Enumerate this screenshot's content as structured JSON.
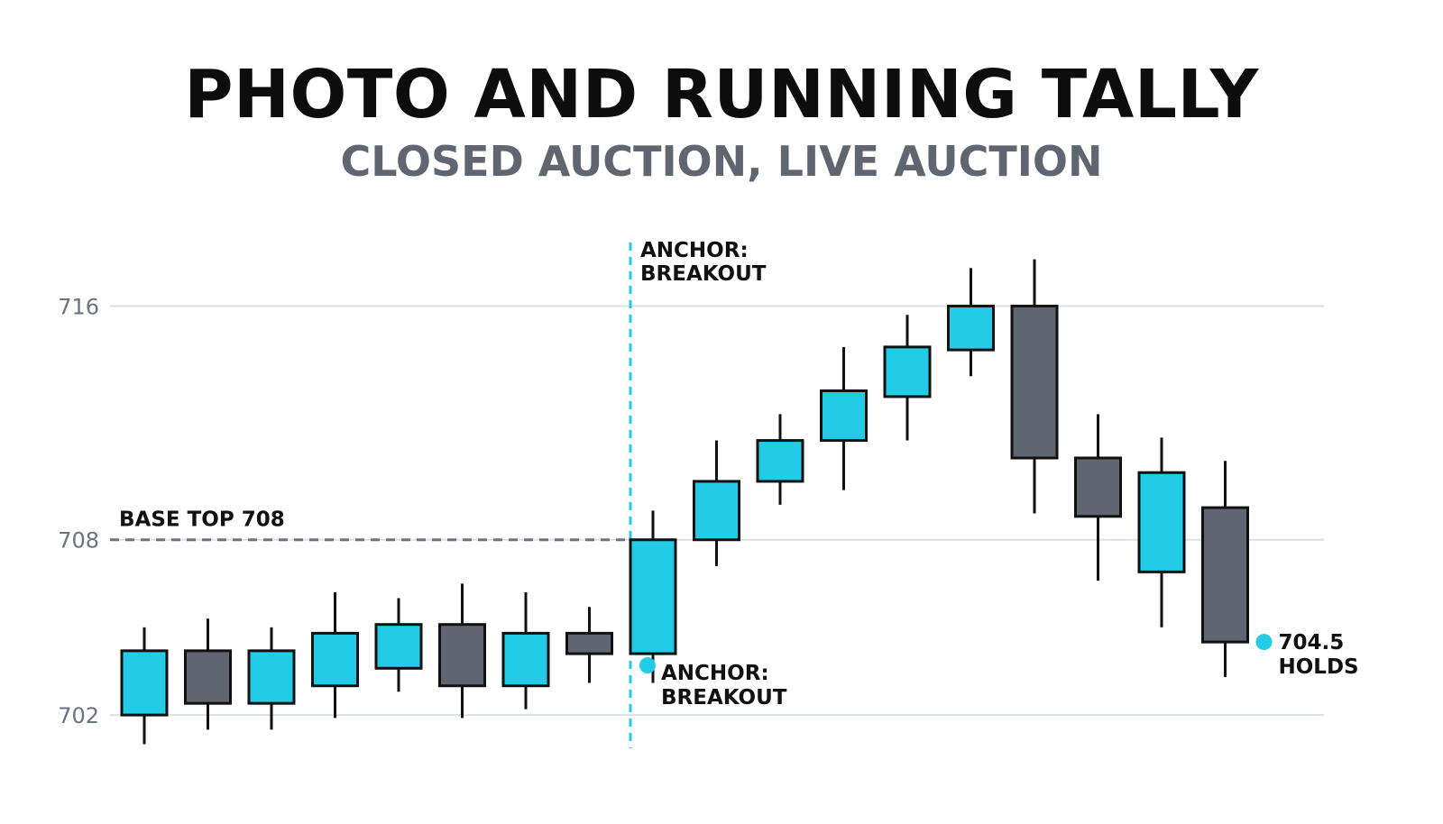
{
  "colors": {
    "bull": "#22cce6",
    "bear": "#5f6672",
    "outline": "#111111",
    "grid": "#dcdfe3",
    "accent": "#22cce6"
  },
  "chart_data": {
    "type": "candlestick",
    "title": "PHOTO AND RUNNING TALLY",
    "subtitle": "CLOSED AUCTION, LIVE AUCTION",
    "y_ticks": [
      702,
      708,
      716
    ],
    "ylim": [
      700.8,
      718.3
    ],
    "grid": true,
    "candles": [
      {
        "open": 702.0,
        "close": 704.2,
        "high": 705.0,
        "low": 701.0
      },
      {
        "open": 704.2,
        "close": 702.4,
        "high": 705.3,
        "low": 701.5
      },
      {
        "open": 702.4,
        "close": 704.2,
        "high": 705.0,
        "low": 701.5
      },
      {
        "open": 703.0,
        "close": 704.8,
        "high": 706.2,
        "low": 701.9
      },
      {
        "open": 703.6,
        "close": 705.1,
        "high": 706.0,
        "low": 702.8
      },
      {
        "open": 705.1,
        "close": 703.0,
        "high": 706.5,
        "low": 701.9
      },
      {
        "open": 703.0,
        "close": 704.8,
        "high": 706.2,
        "low": 702.2
      },
      {
        "open": 704.8,
        "close": 704.1,
        "high": 705.7,
        "low": 703.1
      },
      {
        "open": 704.1,
        "close": 708.0,
        "high": 709.0,
        "low": 703.1
      },
      {
        "open": 708.0,
        "close": 710.0,
        "high": 711.4,
        "low": 707.1
      },
      {
        "open": 710.0,
        "close": 711.4,
        "high": 712.3,
        "low": 709.2
      },
      {
        "open": 711.4,
        "close": 713.1,
        "high": 714.6,
        "low": 709.7
      },
      {
        "open": 712.9,
        "close": 714.6,
        "high": 715.7,
        "low": 711.4
      },
      {
        "open": 714.5,
        "close": 716.0,
        "high": 717.3,
        "low": 713.6
      },
      {
        "open": 716.0,
        "close": 710.8,
        "high": 717.6,
        "low": 708.9
      },
      {
        "open": 710.8,
        "close": 708.8,
        "high": 712.3,
        "low": 706.6
      },
      {
        "open": 706.9,
        "close": 710.3,
        "high": 711.5,
        "low": 705.0
      },
      {
        "open": 709.1,
        "close": 704.5,
        "high": 710.7,
        "low": 703.3
      }
    ],
    "annotations": {
      "base_line": {
        "value": 708,
        "label": "BASE TOP 708"
      },
      "anchor_top": {
        "label_line1": "ANCHOR:",
        "label_line2": "BREAKOUT"
      },
      "anchor_point": {
        "value": 703.7,
        "label_line1": "ANCHOR:",
        "label_line2": "BREAKOUT"
      },
      "holds_point": {
        "value": 704.5,
        "label_line1": "704.5",
        "label_line2": "HOLDS"
      }
    }
  }
}
